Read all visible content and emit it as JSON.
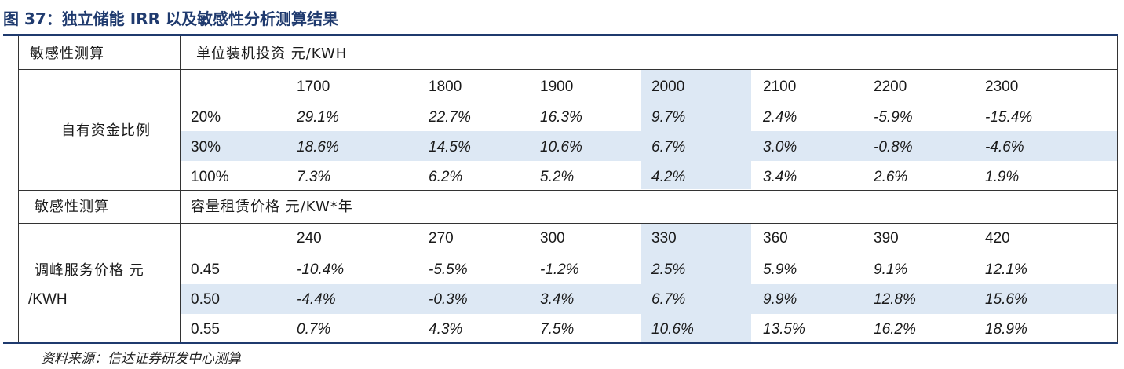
{
  "title": "图 37：独立储能 IRR 以及敏感性分析测算结果",
  "source": "资料来源：信达证券研发中心测算",
  "section1": {
    "label": "敏感性测算",
    "header": "单位装机投资 元/KWH",
    "row_label": "自有资金比例",
    "columns": [
      "1700",
      "1800",
      "1900",
      "2000",
      "2100",
      "2200",
      "2300"
    ],
    "rows": [
      {
        "key": "20%",
        "values": [
          "29.1%",
          "22.7%",
          "16.3%",
          "9.7%",
          "2.4%",
          "-5.9%",
          "-15.4%"
        ]
      },
      {
        "key": "30%",
        "values": [
          "18.6%",
          "14.5%",
          "10.6%",
          "6.7%",
          "3.0%",
          "-0.8%",
          "-4.6%"
        ]
      },
      {
        "key": "100%",
        "values": [
          "7.3%",
          "6.2%",
          "5.2%",
          "4.2%",
          "3.4%",
          "2.6%",
          "1.9%"
        ]
      }
    ]
  },
  "section2": {
    "label": "敏感性测算",
    "header": "容量租赁价格 元/KW*年",
    "row_label_line1": "调峰服务价格 元",
    "row_label_line2": "/KWH",
    "columns": [
      "240",
      "270",
      "300",
      "330",
      "360",
      "390",
      "420"
    ],
    "rows": [
      {
        "key": "0.45",
        "values": [
          "-10.4%",
          "-5.5%",
          "-1.2%",
          "2.5%",
          "5.9%",
          "9.1%",
          "12.1%"
        ]
      },
      {
        "key": "0.50",
        "values": [
          "-4.4%",
          "-0.3%",
          "3.4%",
          "6.7%",
          "9.9%",
          "12.8%",
          "15.6%"
        ]
      },
      {
        "key": "0.55",
        "values": [
          "0.7%",
          "4.3%",
          "7.5%",
          "10.6%",
          "13.5%",
          "16.2%",
          "18.9%"
        ]
      }
    ]
  }
}
